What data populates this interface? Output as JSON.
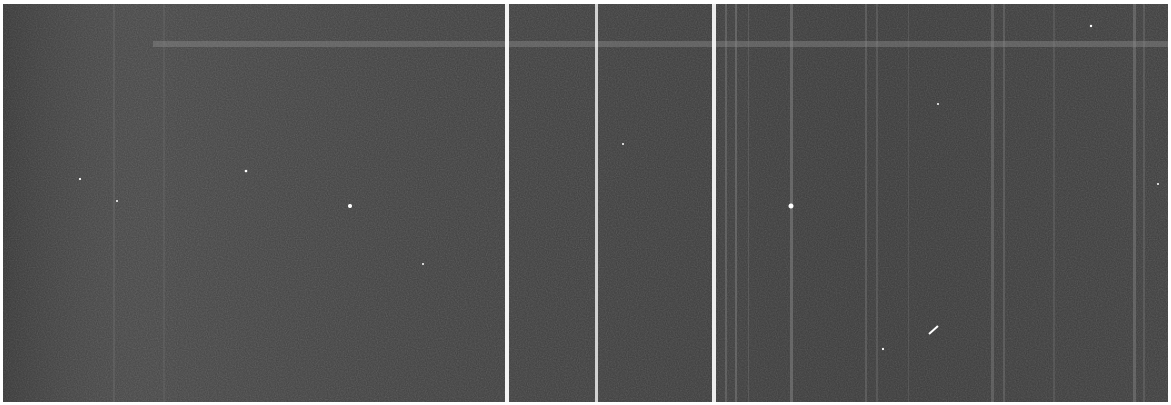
{
  "image": {
    "kind": "grayscale spectrogram",
    "colors": {
      "background": "#3a3a3a",
      "frame": "#ffffff",
      "emission_line": "#f2f2f2",
      "faint_line": "#8a8a8a"
    }
  }
}
